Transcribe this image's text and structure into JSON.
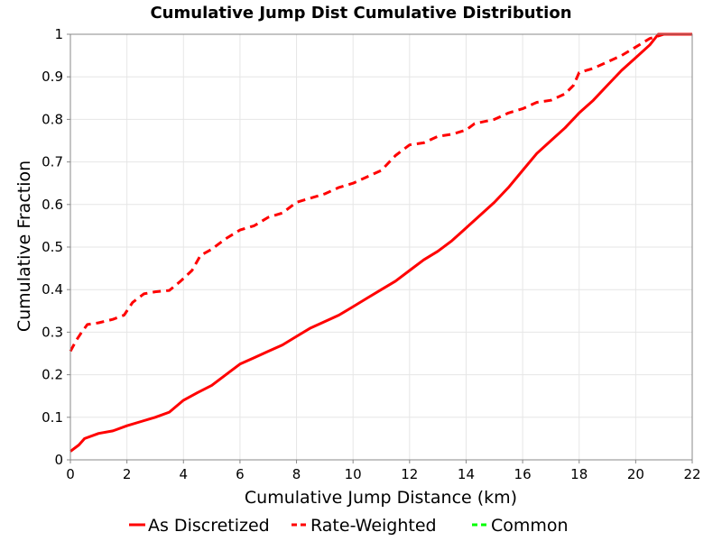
{
  "chart_data": {
    "type": "line",
    "title": "Cumulative Jump Dist Cumulative Distribution",
    "xlabel": "Cumulative Jump Distance (km)",
    "ylabel": "Cumulative Fraction",
    "xlim": [
      0,
      22
    ],
    "ylim": [
      0,
      1
    ],
    "xticks": [
      0,
      2,
      4,
      6,
      8,
      10,
      12,
      14,
      16,
      18,
      20,
      22
    ],
    "yticks": [
      0,
      0.1,
      0.2,
      0.3,
      0.4,
      0.5,
      0.6,
      0.7,
      0.8,
      0.9,
      1
    ],
    "xtick_labels": [
      "0",
      "2",
      "4",
      "6",
      "8",
      "10",
      "12",
      "14",
      "16",
      "18",
      "20",
      "22"
    ],
    "ytick_labels": [
      "0",
      "0.1",
      "0.2",
      "0.3",
      "0.4",
      "0.5",
      "0.6",
      "0.7",
      "0.8",
      "0.9",
      "1"
    ],
    "grid": true,
    "legend_position": "bottom",
    "series": [
      {
        "name": "As Discretized",
        "color": "#ff0000",
        "style": "solid",
        "points": [
          [
            0,
            0.02
          ],
          [
            0.3,
            0.035
          ],
          [
            0.5,
            0.05
          ],
          [
            1,
            0.062
          ],
          [
            1.5,
            0.068
          ],
          [
            2,
            0.08
          ],
          [
            2.5,
            0.09
          ],
          [
            3,
            0.1
          ],
          [
            3.5,
            0.112
          ],
          [
            4,
            0.14
          ],
          [
            4.5,
            0.158
          ],
          [
            5,
            0.175
          ],
          [
            5.5,
            0.2
          ],
          [
            6,
            0.225
          ],
          [
            6.5,
            0.24
          ],
          [
            7,
            0.255
          ],
          [
            7.5,
            0.27
          ],
          [
            8,
            0.29
          ],
          [
            8.5,
            0.31
          ],
          [
            9,
            0.325
          ],
          [
            9.5,
            0.34
          ],
          [
            10,
            0.36
          ],
          [
            10.5,
            0.38
          ],
          [
            11,
            0.4
          ],
          [
            11.5,
            0.42
          ],
          [
            12,
            0.445
          ],
          [
            12.5,
            0.47
          ],
          [
            13,
            0.49
          ],
          [
            13.5,
            0.515
          ],
          [
            14,
            0.545
          ],
          [
            14.5,
            0.575
          ],
          [
            15,
            0.605
          ],
          [
            15.5,
            0.64
          ],
          [
            16,
            0.68
          ],
          [
            16.5,
            0.72
          ],
          [
            17,
            0.75
          ],
          [
            17.5,
            0.78
          ],
          [
            18,
            0.815
          ],
          [
            18.5,
            0.845
          ],
          [
            19,
            0.88
          ],
          [
            19.5,
            0.915
          ],
          [
            20,
            0.945
          ],
          [
            20.5,
            0.975
          ],
          [
            20.8,
            1.0
          ],
          [
            22,
            1.0
          ]
        ]
      },
      {
        "name": "Rate-Weighted",
        "color": "#ff0000",
        "style": "dashed",
        "points": [
          [
            0,
            0.255
          ],
          [
            0.2,
            0.28
          ],
          [
            0.4,
            0.3
          ],
          [
            0.6,
            0.318
          ],
          [
            1,
            0.322
          ],
          [
            1.5,
            0.33
          ],
          [
            1.9,
            0.34
          ],
          [
            2.2,
            0.37
          ],
          [
            2.6,
            0.39
          ],
          [
            3,
            0.395
          ],
          [
            3.5,
            0.398
          ],
          [
            3.9,
            0.42
          ],
          [
            4.3,
            0.445
          ],
          [
            4.6,
            0.48
          ],
          [
            5,
            0.495
          ],
          [
            5.5,
            0.52
          ],
          [
            6,
            0.54
          ],
          [
            6.5,
            0.55
          ],
          [
            7,
            0.57
          ],
          [
            7.5,
            0.58
          ],
          [
            8,
            0.605
          ],
          [
            8.5,
            0.615
          ],
          [
            9,
            0.625
          ],
          [
            9.5,
            0.64
          ],
          [
            10,
            0.65
          ],
          [
            10.5,
            0.665
          ],
          [
            11,
            0.68
          ],
          [
            11.5,
            0.715
          ],
          [
            12,
            0.74
          ],
          [
            12.5,
            0.745
          ],
          [
            13,
            0.76
          ],
          [
            13.5,
            0.765
          ],
          [
            14,
            0.775
          ],
          [
            14.3,
            0.79
          ],
          [
            15,
            0.8
          ],
          [
            15.5,
            0.815
          ],
          [
            16,
            0.825
          ],
          [
            16.5,
            0.84
          ],
          [
            17,
            0.845
          ],
          [
            17.5,
            0.86
          ],
          [
            17.8,
            0.88
          ],
          [
            18,
            0.91
          ],
          [
            18.5,
            0.92
          ],
          [
            19,
            0.935
          ],
          [
            19.5,
            0.95
          ],
          [
            20,
            0.97
          ],
          [
            20.5,
            0.99
          ],
          [
            21,
            1.0
          ],
          [
            22,
            1.0
          ]
        ]
      },
      {
        "name": "Common",
        "color": "#00ff00",
        "style": "dashed",
        "points": []
      }
    ]
  }
}
